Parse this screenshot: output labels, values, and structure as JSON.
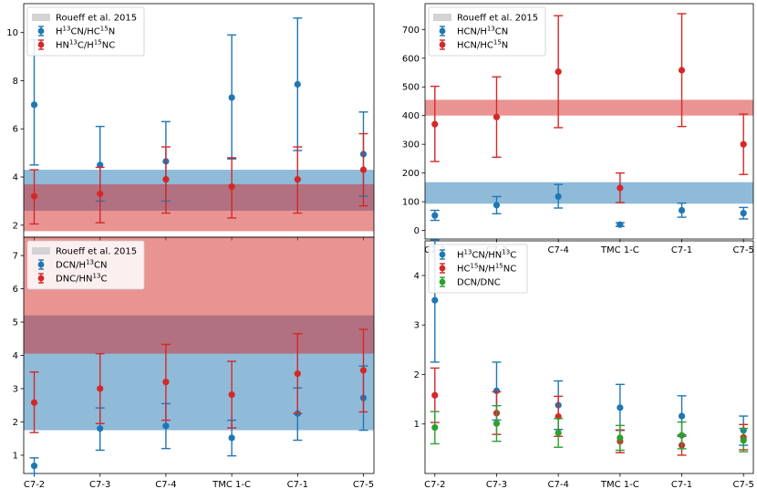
{
  "colors": {
    "blue": "#1f77b4",
    "red": "#d62728",
    "green": "#2ca02c",
    "ref": "#d3d3d3"
  },
  "chart_data": [
    {
      "id": "tl",
      "type": "errorbar",
      "categories": [
        "C7-2",
        "C7-3",
        "C7-4",
        "TMC 1-C",
        "C7-1",
        "C7-5"
      ],
      "ylim": [
        1.5,
        11.2
      ],
      "yticks": [
        2,
        4,
        6,
        8,
        10
      ],
      "show_xticklabels": false,
      "legend": [
        "Roueff et al. 2015",
        "H¹³CN/HC¹⁵N",
        "HN¹³C/H¹⁵NC"
      ],
      "bands": [
        {
          "series": "blue",
          "y0": 2.6,
          "y1": 4.3
        },
        {
          "series": "red",
          "y0": 1.75,
          "y1": 3.7
        }
      ],
      "series": [
        {
          "name": "H¹³CN/HC¹⁵N",
          "color": "blue",
          "values": [
            7.0,
            4.5,
            4.65,
            7.3,
            7.85,
            4.95
          ],
          "lower": [
            4.5,
            3.0,
            3.0,
            4.75,
            5.1,
            3.2
          ],
          "upper": [
            9.7,
            6.1,
            6.3,
            9.9,
            10.6,
            6.7
          ]
        },
        {
          "name": "HN¹³C/H¹⁵NC",
          "color": "red",
          "values": [
            3.2,
            3.3,
            3.9,
            3.6,
            3.9,
            4.3
          ],
          "lower": [
            2.05,
            2.1,
            2.5,
            2.3,
            2.5,
            2.8
          ],
          "upper": [
            4.3,
            4.4,
            5.25,
            4.8,
            5.25,
            5.8
          ]
        }
      ]
    },
    {
      "id": "tr",
      "type": "errorbar",
      "categories": [
        "C7-2",
        "C7-3",
        "C7-4",
        "TMC 1-C",
        "C7-1",
        "C7-5"
      ],
      "ylim": [
        -30,
        790
      ],
      "yticks": [
        0,
        100,
        200,
        300,
        400,
        500,
        600,
        700
      ],
      "show_xticklabels": true,
      "legend": [
        "Roueff et al. 2015",
        "HCN/H¹³CN",
        "HCN/HC¹⁵N"
      ],
      "bands": [
        {
          "series": "blue",
          "y0": 93,
          "y1": 168
        },
        {
          "series": "red",
          "y0": 400,
          "y1": 455
        }
      ],
      "series": [
        {
          "name": "HCN/H¹³CN",
          "color": "blue",
          "values": [
            52,
            88,
            118,
            20,
            70,
            60
          ],
          "lower": [
            35,
            58,
            78,
            14,
            46,
            40
          ],
          "upper": [
            70,
            118,
            160,
            27,
            95,
            80
          ]
        },
        {
          "name": "HCN/HC¹⁵N",
          "color": "red",
          "values": [
            370,
            395,
            553,
            148,
            558,
            300
          ],
          "lower": [
            240,
            255,
            358,
            97,
            362,
            195
          ],
          "upper": [
            502,
            535,
            748,
            200,
            755,
            405
          ]
        }
      ]
    },
    {
      "id": "bl",
      "type": "errorbar",
      "categories": [
        "C7-2",
        "C7-3",
        "C7-4",
        "TMC 1-C",
        "C7-1",
        "C7-5"
      ],
      "ylim": [
        0.45,
        7.55
      ],
      "yticks": [
        1,
        2,
        3,
        4,
        5,
        6,
        7
      ],
      "show_xticklabels": true,
      "legend": [
        "Roueff et al. 2015",
        "DCN/H¹³CN",
        "DNC/HN¹³C"
      ],
      "bands": [
        {
          "series": "blue",
          "y0": 1.75,
          "y1": 5.2
        },
        {
          "series": "red",
          "y0": 4.05,
          "y1": 7.6
        }
      ],
      "series": [
        {
          "name": "DCN/H¹³CN",
          "color": "blue",
          "values": [
            0.68,
            1.8,
            1.88,
            1.52,
            2.25,
            2.72
          ],
          "lower": [
            0.45,
            1.15,
            1.2,
            0.98,
            1.45,
            1.75
          ],
          "upper": [
            0.92,
            2.42,
            2.55,
            2.05,
            3.02,
            3.68
          ]
        },
        {
          "name": "DNC/HN¹³C",
          "color": "red",
          "values": [
            2.58,
            3.0,
            3.2,
            2.82,
            3.45,
            3.55
          ],
          "lower": [
            1.68,
            1.95,
            2.05,
            1.82,
            2.25,
            2.3
          ],
          "upper": [
            3.5,
            4.05,
            4.33,
            3.82,
            4.65,
            4.78
          ]
        }
      ]
    },
    {
      "id": "br",
      "type": "errorbar",
      "categories": [
        "C7-2",
        "C7-3",
        "C7-4",
        "TMC 1-C",
        "C7-1",
        "C7-5"
      ],
      "ylim": [
        0.0,
        4.7
      ],
      "yticks": [
        1,
        2,
        3,
        4
      ],
      "show_xticklabels": true,
      "legend": [
        "H¹³CN/HN¹³C",
        "HC¹⁵N/H¹⁵NC",
        "DCN/DNC"
      ],
      "bands": [],
      "series": [
        {
          "name": "H¹³CN/HN¹³C",
          "color": "blue",
          "values": [
            3.5,
            1.67,
            1.38,
            1.33,
            1.16,
            0.87
          ],
          "lower": [
            2.25,
            1.08,
            0.89,
            0.87,
            0.75,
            0.57
          ],
          "upper": [
            4.72,
            2.25,
            1.87,
            1.8,
            1.57,
            1.16
          ]
        },
        {
          "name": "HC¹⁵N/H¹⁵NC",
          "color": "red",
          "values": [
            1.58,
            1.22,
            1.15,
            0.65,
            0.57,
            0.73
          ],
          "lower": [
            1.03,
            0.79,
            0.75,
            0.42,
            0.37,
            0.48
          ],
          "upper": [
            2.13,
            1.65,
            1.56,
            0.88,
            0.78,
            0.99
          ]
        },
        {
          "name": "DCN/DNC",
          "color": "green",
          "values": [
            0.93,
            1.01,
            0.82,
            0.72,
            0.77,
            0.67
          ],
          "lower": [
            0.6,
            0.65,
            0.53,
            0.47,
            0.5,
            0.44
          ],
          "upper": [
            1.25,
            1.37,
            1.11,
            0.97,
            1.04,
            0.91
          ]
        }
      ]
    }
  ]
}
